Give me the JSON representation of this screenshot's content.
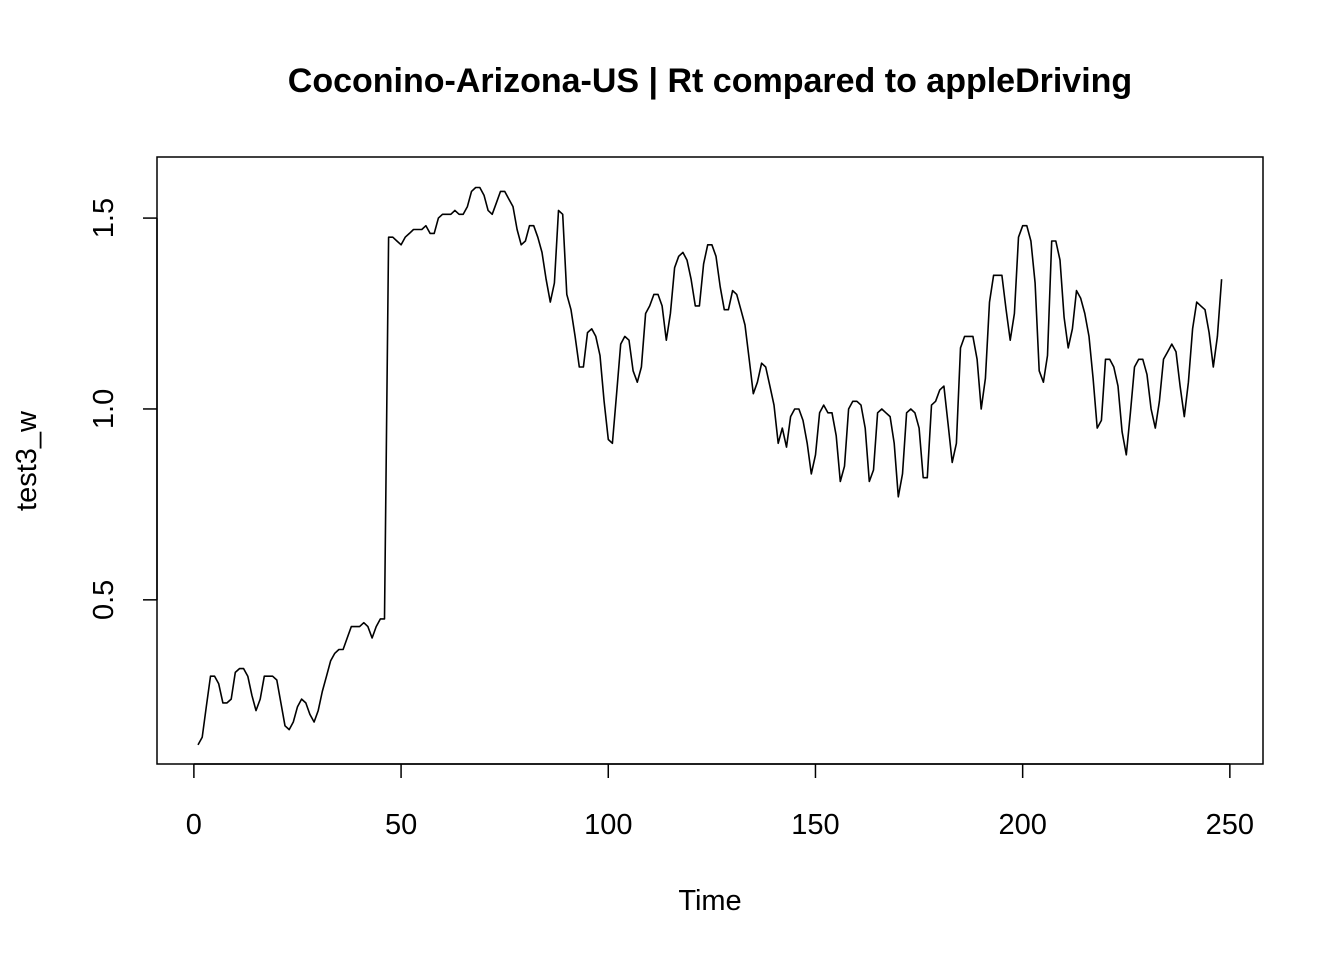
{
  "chart_data": {
    "type": "line",
    "title": "Coconino-Arizona-US | Rt compared to appleDriving",
    "xlabel": "Time",
    "ylabel": "test3_w",
    "xlim": [
      -8.9,
      258
    ],
    "ylim": [
      0.07,
      1.66
    ],
    "x_ticks": [
      0,
      50,
      100,
      150,
      200,
      250
    ],
    "y_ticks": [
      0.5,
      1.0,
      1.5
    ],
    "x_tick_labels": [
      "0",
      "50",
      "100",
      "150",
      "200",
      "250"
    ],
    "y_tick_labels": [
      "0.5",
      "1.0",
      "1.5"
    ],
    "grid": false,
    "legend": "none",
    "line_color": "#000000",
    "series": [
      {
        "x": [
          1,
          2,
          3,
          4,
          5,
          6,
          7,
          8,
          9,
          10,
          11,
          12,
          13,
          14,
          15,
          16,
          17,
          18,
          19,
          20,
          21,
          22,
          23,
          24,
          25,
          26,
          27,
          28,
          29,
          30,
          31,
          32,
          33,
          34,
          35,
          36,
          37,
          38,
          39,
          40,
          41,
          42,
          43,
          44,
          45,
          46,
          47,
          48,
          49,
          50,
          51,
          52,
          53,
          54,
          55,
          56,
          57,
          58,
          59,
          60,
          61,
          62,
          63,
          64,
          65,
          66,
          67,
          68,
          69,
          70,
          71,
          72,
          73,
          74,
          75,
          76,
          77,
          78,
          79,
          80,
          81,
          82,
          83,
          84,
          85,
          86,
          87,
          88,
          89,
          90,
          91,
          92,
          93,
          94,
          95,
          96,
          97,
          98,
          99,
          100,
          101,
          102,
          103,
          104,
          105,
          106,
          107,
          108,
          109,
          110,
          111,
          112,
          113,
          114,
          115,
          116,
          117,
          118,
          119,
          120,
          121,
          122,
          123,
          124,
          125,
          126,
          127,
          128,
          129,
          130,
          131,
          132,
          133,
          134,
          135,
          136,
          137,
          138,
          139,
          140,
          141,
          142,
          143,
          144,
          145,
          146,
          147,
          148,
          149,
          150,
          151,
          152,
          153,
          154,
          155,
          156,
          157,
          158,
          159,
          160,
          161,
          162,
          163,
          164,
          165,
          166,
          167,
          168,
          169,
          170,
          171,
          172,
          173,
          174,
          175,
          176,
          177,
          178,
          179,
          180,
          181,
          182,
          183,
          184,
          185,
          186,
          187,
          188,
          189,
          190,
          191,
          192,
          193,
          194,
          195,
          196,
          197,
          198,
          199,
          200,
          201,
          202,
          203,
          204,
          205,
          206,
          207,
          208,
          209,
          210,
          211,
          212,
          213,
          214,
          215,
          216,
          217,
          218,
          219,
          220,
          221,
          222,
          223,
          224,
          225,
          226,
          227,
          228,
          229,
          230,
          231,
          232,
          233,
          234,
          235,
          236,
          237,
          238,
          239,
          240,
          241,
          242,
          243,
          244,
          245,
          246,
          247,
          248
        ],
        "values": [
          0.12,
          0.14,
          0.22,
          0.3,
          0.3,
          0.28,
          0.23,
          0.23,
          0.24,
          0.31,
          0.32,
          0.32,
          0.3,
          0.25,
          0.21,
          0.24,
          0.3,
          0.3,
          0.3,
          0.29,
          0.23,
          0.17,
          0.16,
          0.18,
          0.22,
          0.24,
          0.23,
          0.2,
          0.18,
          0.21,
          0.26,
          0.3,
          0.34,
          0.36,
          0.37,
          0.37,
          0.4,
          0.43,
          0.43,
          0.43,
          0.44,
          0.43,
          0.4,
          0.43,
          0.45,
          0.45,
          1.45,
          1.45,
          1.44,
          1.43,
          1.45,
          1.46,
          1.47,
          1.47,
          1.47,
          1.48,
          1.46,
          1.46,
          1.5,
          1.51,
          1.51,
          1.51,
          1.52,
          1.51,
          1.51,
          1.53,
          1.57,
          1.58,
          1.58,
          1.56,
          1.52,
          1.51,
          1.54,
          1.57,
          1.57,
          1.55,
          1.53,
          1.47,
          1.43,
          1.44,
          1.48,
          1.48,
          1.45,
          1.41,
          1.34,
          1.28,
          1.33,
          1.52,
          1.51,
          1.3,
          1.26,
          1.19,
          1.11,
          1.11,
          1.2,
          1.21,
          1.19,
          1.14,
          1.02,
          0.92,
          0.91,
          1.04,
          1.17,
          1.19,
          1.18,
          1.1,
          1.07,
          1.11,
          1.25,
          1.27,
          1.3,
          1.3,
          1.27,
          1.18,
          1.25,
          1.37,
          1.4,
          1.41,
          1.39,
          1.34,
          1.27,
          1.27,
          1.38,
          1.43,
          1.43,
          1.4,
          1.32,
          1.26,
          1.26,
          1.31,
          1.3,
          1.26,
          1.22,
          1.13,
          1.04,
          1.07,
          1.12,
          1.11,
          1.06,
          1.01,
          0.91,
          0.95,
          0.9,
          0.98,
          1.0,
          1.0,
          0.97,
          0.91,
          0.83,
          0.88,
          0.99,
          1.01,
          0.99,
          0.99,
          0.93,
          0.81,
          0.85,
          1.0,
          1.02,
          1.02,
          1.01,
          0.95,
          0.81,
          0.84,
          0.99,
          1.0,
          0.99,
          0.98,
          0.91,
          0.77,
          0.83,
          0.99,
          1.0,
          0.99,
          0.95,
          0.82,
          0.82,
          1.01,
          1.02,
          1.05,
          1.06,
          0.96,
          0.86,
          0.91,
          1.16,
          1.19,
          1.19,
          1.19,
          1.13,
          1.0,
          1.08,
          1.28,
          1.35,
          1.35,
          1.35,
          1.26,
          1.18,
          1.25,
          1.45,
          1.48,
          1.48,
          1.44,
          1.33,
          1.1,
          1.07,
          1.14,
          1.44,
          1.44,
          1.39,
          1.24,
          1.16,
          1.21,
          1.31,
          1.29,
          1.25,
          1.19,
          1.08,
          0.95,
          0.97,
          1.13,
          1.13,
          1.11,
          1.06,
          0.94,
          0.88,
          0.99,
          1.11,
          1.13,
          1.13,
          1.09,
          1.0,
          0.95,
          1.02,
          1.13,
          1.15,
          1.17,
          1.15,
          1.06,
          0.98,
          1.07,
          1.21,
          1.28,
          1.27,
          1.26,
          1.2,
          1.11,
          1.19,
          1.34
        ]
      }
    ]
  }
}
